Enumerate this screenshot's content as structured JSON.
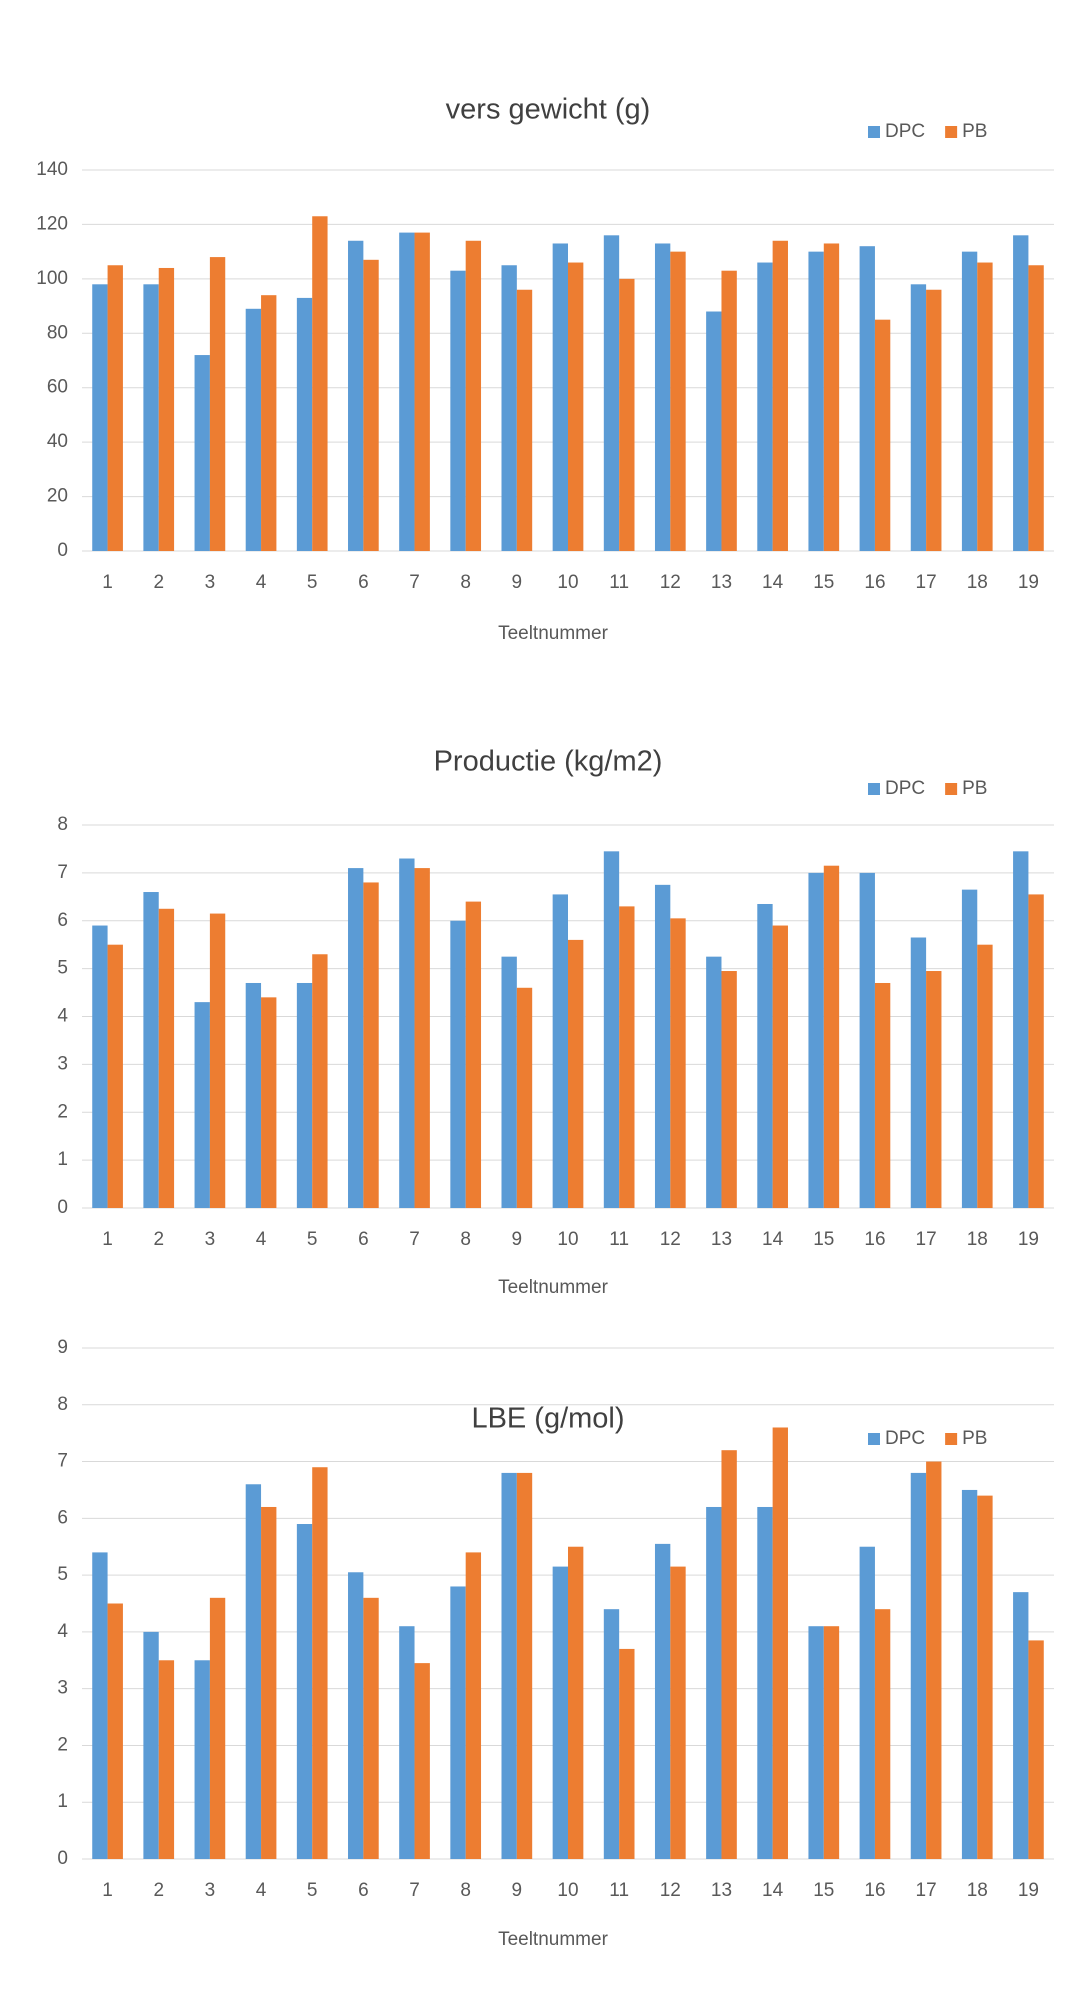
{
  "chart_data": [
    {
      "type": "bar",
      "title": "vers gewicht (g)",
      "x_label": "Teeltnummer",
      "categories": [
        "1",
        "2",
        "3",
        "4",
        "5",
        "6",
        "7",
        "8",
        "9",
        "10",
        "11",
        "12",
        "13",
        "14",
        "15",
        "16",
        "17",
        "18",
        "19"
      ],
      "series": [
        {
          "name": "DPC",
          "color": "#5b9bd5",
          "values": [
            98,
            98,
            72,
            89,
            93,
            114,
            117,
            103,
            105,
            113,
            116,
            113,
            88,
            106,
            110,
            112,
            98,
            110,
            116
          ]
        },
        {
          "name": "PB",
          "color": "#ed7d31",
          "values": [
            105,
            104,
            108,
            94,
            123,
            107,
            117,
            114,
            96,
            106,
            100,
            110,
            103,
            114,
            113,
            85,
            96,
            106,
            105
          ]
        }
      ],
      "ylim": [
        0,
        140
      ],
      "yticks": [
        0,
        20,
        40,
        60,
        80,
        100,
        120,
        140
      ],
      "grid": true,
      "legend": "top-right"
    },
    {
      "type": "bar",
      "title": "Productie (kg/m2)",
      "x_label": "Teeltnummer",
      "categories": [
        "1",
        "2",
        "3",
        "4",
        "5",
        "6",
        "7",
        "8",
        "9",
        "10",
        "11",
        "12",
        "13",
        "14",
        "15",
        "16",
        "17",
        "18",
        "19"
      ],
      "series": [
        {
          "name": "DPC",
          "color": "#5b9bd5",
          "values": [
            5.9,
            6.6,
            4.3,
            4.7,
            4.7,
            7.1,
            7.3,
            6.0,
            5.25,
            6.55,
            7.45,
            6.75,
            5.25,
            6.35,
            7.0,
            7.0,
            5.65,
            6.65,
            7.45
          ]
        },
        {
          "name": "PB",
          "color": "#ed7d31",
          "values": [
            5.5,
            6.25,
            6.15,
            4.4,
            5.3,
            6.8,
            7.1,
            6.4,
            4.6,
            5.6,
            6.3,
            6.05,
            4.95,
            5.9,
            7.15,
            4.7,
            4.95,
            5.5,
            6.55
          ]
        }
      ],
      "ylim": [
        0,
        8
      ],
      "yticks": [
        0,
        1,
        2,
        3,
        4,
        5,
        6,
        7,
        8
      ],
      "grid": true,
      "legend": "top-right"
    },
    {
      "type": "bar",
      "title": "LBE (g/mol)",
      "x_label": "Teeltnummer",
      "categories": [
        "1",
        "2",
        "3",
        "4",
        "5",
        "6",
        "7",
        "8",
        "9",
        "10",
        "11",
        "12",
        "13",
        "14",
        "15",
        "16",
        "17",
        "18",
        "19"
      ],
      "series": [
        {
          "name": "DPC",
          "color": "#5b9bd5",
          "values": [
            5.4,
            4.0,
            3.5,
            6.6,
            5.9,
            5.05,
            4.1,
            4.8,
            6.8,
            5.15,
            4.4,
            5.55,
            6.2,
            6.2,
            4.1,
            5.5,
            6.8,
            6.5,
            4.7
          ]
        },
        {
          "name": "PB",
          "color": "#ed7d31",
          "values": [
            4.5,
            3.5,
            4.6,
            6.2,
            6.9,
            4.6,
            3.45,
            5.4,
            6.8,
            5.5,
            3.7,
            5.15,
            7.2,
            7.6,
            4.1,
            4.4,
            7.0,
            6.4,
            3.85
          ]
        }
      ],
      "ylim": [
        0,
        9
      ],
      "yticks": [
        0,
        1,
        2,
        3,
        4,
        5,
        6,
        7,
        8,
        9
      ],
      "grid": true,
      "legend": "top-right"
    }
  ]
}
